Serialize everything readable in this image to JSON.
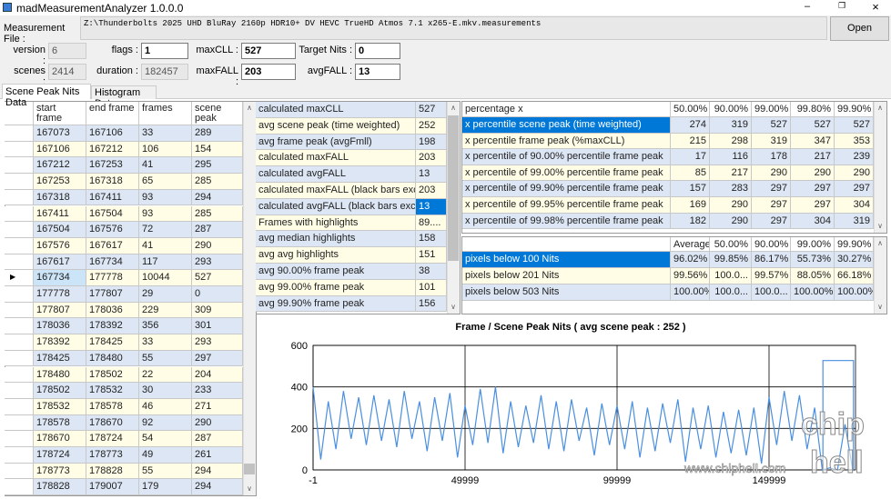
{
  "window": {
    "title": "madMeasurementAnalyzer 1.0.0.0"
  },
  "file": {
    "label": "Measurement File :",
    "path": "Z:\\Thunderbolts 2025 UHD BluRay 2160p HDR10+ DV HEVC TrueHD Atmos 7.1 x265-E.mkv.measurements",
    "button": "Open"
  },
  "fields": [
    {
      "label": "version :",
      "value": "6"
    },
    {
      "label": "flags :",
      "value": "1"
    },
    {
      "label": "maxCLL :",
      "value": "527"
    },
    {
      "label": "Target Nits :",
      "value": "0"
    },
    {
      "label": "scenes :",
      "value": "2414"
    },
    {
      "label": "duration :",
      "value": "182457"
    },
    {
      "label": "maxFALL :",
      "value": "203"
    },
    {
      "label": "avgFALL :",
      "value": "13"
    }
  ],
  "tabs": [
    "Scene Peak Nits Data",
    "Histogram Data"
  ],
  "scene_table": {
    "columns": [
      "start frame",
      "end frame",
      "frames",
      "scene peak"
    ],
    "rows": [
      [
        "167073",
        "167106",
        "33",
        "289"
      ],
      [
        "167106",
        "167212",
        "106",
        "154"
      ],
      [
        "167212",
        "167253",
        "41",
        "295"
      ],
      [
        "167253",
        "167318",
        "65",
        "285"
      ],
      [
        "167318",
        "167411",
        "93",
        "294"
      ],
      [
        "167411",
        "167504",
        "93",
        "285"
      ],
      [
        "167504",
        "167576",
        "72",
        "287"
      ],
      [
        "167576",
        "167617",
        "41",
        "290"
      ],
      [
        "167617",
        "167734",
        "117",
        "293"
      ],
      [
        "167734",
        "177778",
        "10044",
        "527"
      ],
      [
        "177778",
        "177807",
        "29",
        "0"
      ],
      [
        "177807",
        "178036",
        "229",
        "309"
      ],
      [
        "178036",
        "178392",
        "356",
        "301"
      ],
      [
        "178392",
        "178425",
        "33",
        "293"
      ],
      [
        "178425",
        "178480",
        "55",
        "297"
      ],
      [
        "178480",
        "178502",
        "22",
        "204"
      ],
      [
        "178502",
        "178532",
        "30",
        "233"
      ],
      [
        "178532",
        "178578",
        "46",
        "271"
      ],
      [
        "178578",
        "178670",
        "92",
        "290"
      ],
      [
        "178670",
        "178724",
        "54",
        "287"
      ],
      [
        "178724",
        "178773",
        "49",
        "261"
      ],
      [
        "178773",
        "178828",
        "55",
        "294"
      ],
      [
        "178828",
        "179007",
        "179",
        "294"
      ]
    ]
  },
  "summary_table": {
    "rows": [
      [
        "calculated maxCLL",
        "527"
      ],
      [
        "avg scene peak (time weighted)",
        "252"
      ],
      [
        "avg frame peak (avgFmll)",
        "198"
      ],
      [
        "calculated maxFALL",
        "203"
      ],
      [
        "calculated avgFALL",
        "13"
      ],
      [
        "calculated maxFALL (black bars exclud...",
        "203"
      ],
      [
        "calculated avgFALL (black bars excluded)",
        "13"
      ],
      [
        "Frames with highlights",
        "89...."
      ],
      [
        "avg median highlights",
        "158"
      ],
      [
        "avg avg highlights",
        "151"
      ],
      [
        "avg  90.00% frame peak",
        "38"
      ],
      [
        "avg  99.00% frame peak",
        "101"
      ],
      [
        "avg  99.90% frame peak",
        "156"
      ]
    ]
  },
  "percentile_table": {
    "columns": [
      "percentage x",
      "50.00%",
      "90.00%",
      "99.00%",
      "99.80%",
      "99.90%"
    ],
    "rows": [
      [
        "x percentile scene peak (time weighted)",
        "274",
        "319",
        "527",
        "527",
        "527"
      ],
      [
        "x percentile frame peak (%maxCLL)",
        "215",
        "298",
        "319",
        "347",
        "353"
      ],
      [
        "x percentile of  90.00% percentile frame peak",
        "17",
        "116",
        "178",
        "217",
        "239"
      ],
      [
        "x percentile of  99.00% percentile frame peak",
        "85",
        "217",
        "290",
        "290",
        "290"
      ],
      [
        "x percentile of  99.90% percentile frame peak",
        "157",
        "283",
        "297",
        "297",
        "297"
      ],
      [
        "x percentile of  99.95% percentile frame peak",
        "169",
        "290",
        "297",
        "297",
        "304"
      ],
      [
        "x percentile of  99.98% percentile frame peak",
        "182",
        "290",
        "297",
        "304",
        "319"
      ]
    ]
  },
  "pixel_table": {
    "columns": [
      "Average",
      "50.00%",
      "90.00%",
      "99.00%",
      "99.90%"
    ],
    "rows": [
      [
        "pixels below 100 Nits",
        "96.02%",
        "99.85%",
        "86.17%",
        "55.73%",
        "30.27%"
      ],
      [
        "pixels below 201 Nits",
        "99.56%",
        "100.0...",
        "99.57%",
        "88.05%",
        "66.18%"
      ],
      [
        "pixels below 503 Nits",
        "100.00%",
        "100.0...",
        "100.0...",
        "100.00%",
        "100.00%"
      ]
    ]
  },
  "chart_data": {
    "type": "line",
    "title": "Frame / Scene Peak Nits ( avg scene peak : 252 )",
    "xlim": [
      -1,
      178443
    ],
    "xticks": [
      -1,
      49999,
      99999,
      149999
    ],
    "ylim": [
      0,
      600
    ],
    "yticks": [
      0,
      200,
      400,
      600
    ],
    "grid": true,
    "series": [
      {
        "color": "#4a8fe0",
        "x": [
          0,
          2500,
          5000,
          7500,
          10000,
          12500,
          15000,
          17500,
          20000,
          22500,
          25000,
          27500,
          30000,
          32500,
          35000,
          37500,
          40000,
          42500,
          45000,
          47500,
          50000,
          52500,
          55000,
          57500,
          60000,
          62500,
          65000,
          67500,
          70000,
          72500,
          75000,
          77500,
          80000,
          82500,
          85000,
          87500,
          90000,
          92500,
          95000,
          97500,
          100000,
          102500,
          105000,
          107500,
          110000,
          112500,
          115000,
          117500,
          120000,
          122500,
          125000,
          127500,
          130000,
          132500,
          135000,
          137500,
          140000,
          142500,
          145000,
          147500,
          150000,
          152500,
          155000,
          157500,
          160000,
          162500,
          165000,
          167500,
          170000,
          172500,
          175000,
          177500
        ],
        "values": [
          400,
          50,
          330,
          100,
          380,
          150,
          350,
          120,
          360,
          140,
          340,
          110,
          380,
          150,
          330,
          90,
          350,
          140,
          370,
          60,
          310,
          120,
          390,
          130,
          400,
          80,
          330,
          110,
          310,
          130,
          360,
          100,
          330,
          90,
          340,
          140,
          300,
          70,
          320,
          120,
          310,
          100,
          330,
          60,
          300,
          90,
          320,
          130,
          340,
          40,
          300,
          100,
          310,
          60,
          280,
          80,
          290,
          70,
          300,
          30,
          350,
          120,
          380,
          140,
          360,
          100,
          300,
          0,
          10,
          0,
          220,
          0
        ]
      },
      {
        "color": "#4a8fe0",
        "x": [
          167734,
          167734,
          177778,
          177778
        ],
        "values": [
          0,
          527,
          527,
          0
        ]
      }
    ]
  },
  "watermark": {
    "url": "www.chiphell.com",
    "logo": [
      "chip",
      "hell"
    ]
  }
}
